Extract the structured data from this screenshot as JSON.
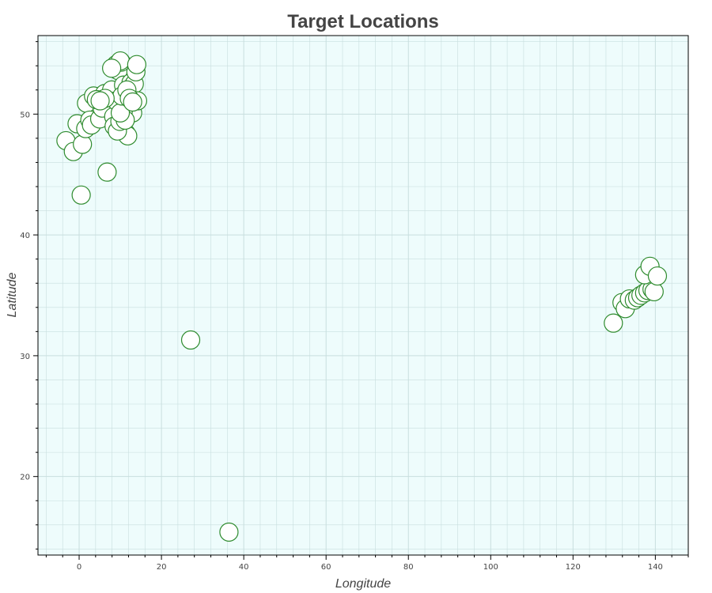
{
  "chart_data": {
    "type": "scatter",
    "title": "Target Locations",
    "xlabel": "Longitude",
    "ylabel": "Latitude",
    "xlim": [
      -10,
      148
    ],
    "ylim": [
      13.5,
      56.5
    ],
    "x_ticks": [
      0,
      20,
      40,
      60,
      80,
      100,
      120,
      140
    ],
    "y_ticks": [
      20,
      30,
      40,
      50
    ],
    "grid": true,
    "legend": "none",
    "colors": {
      "plot_background": "#eefcfc",
      "grid": "#c8dede",
      "marker_fill": "#ffffff",
      "marker_stroke": "#2e8b2e",
      "text": "#444444"
    },
    "series": [
      {
        "x": [
          -3.2,
          -1.4,
          -0.5,
          0.5,
          0.8,
          1.8,
          1.6,
          2.6,
          3.5,
          3.0,
          5.0,
          6.8,
          5.6,
          6.2,
          7.3,
          7.9,
          8.4,
          9.0,
          9.5,
          9.0,
          10.2,
          10.8,
          11.4,
          11.8,
          12.1,
          12.6,
          13.0,
          13.4,
          13.8,
          14.2,
          8.5,
          9.3,
          9.9,
          10.7,
          11.2,
          10.0,
          10.4,
          11.6,
          12.2,
          6.3,
          4.2,
          13.0,
          10.0,
          14.0,
          7.9,
          5.1,
          27.1,
          36.4,
          129.8,
          131.9,
          132.7,
          133.7,
          134.9,
          135.7,
          136.5,
          137.4,
          138.2,
          139.2,
          139.7,
          137.4,
          138.7,
          140.5
        ],
        "y": [
          47.8,
          46.9,
          49.2,
          43.3,
          47.5,
          50.9,
          48.8,
          49.5,
          51.5,
          49.1,
          49.6,
          45.2,
          50.5,
          51.7,
          51.4,
          52.0,
          49.8,
          54.1,
          53.6,
          51.1,
          54.3,
          52.4,
          48.4,
          48.2,
          51.5,
          52.6,
          50.1,
          52.5,
          53.5,
          51.1,
          49.0,
          48.6,
          49.4,
          50.2,
          49.5,
          50.1,
          51.5,
          52.0,
          51.3,
          51.3,
          51.2,
          51.0,
          54.4,
          54.1,
          53.8,
          51.1,
          31.3,
          15.4,
          32.7,
          34.4,
          33.9,
          34.7,
          34.6,
          34.8,
          35.0,
          35.2,
          35.4,
          35.5,
          35.3,
          36.7,
          37.4,
          36.6
        ]
      }
    ]
  }
}
